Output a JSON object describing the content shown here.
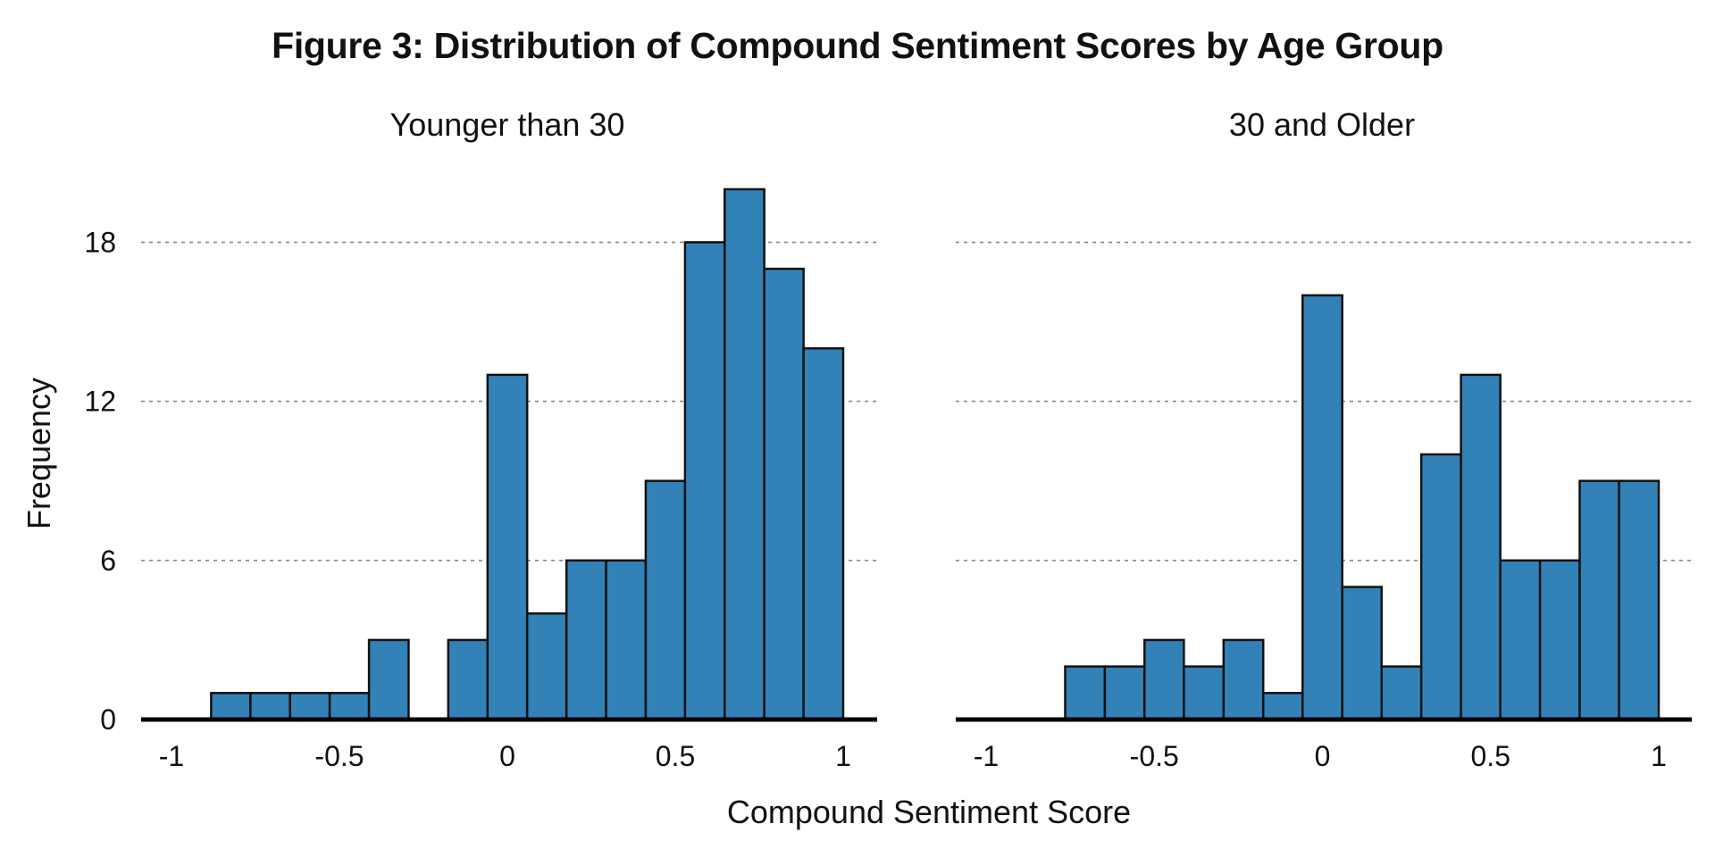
{
  "figure": {
    "title": "Figure 3: Distribution of Compound Sentiment Scores by Age Group"
  },
  "chart_data": {
    "type": "bar",
    "subtype": "histogram",
    "xlabel": "Compound Sentiment Score",
    "ylabel": "Frequency",
    "xlim": [
      -1,
      1
    ],
    "ylim": [
      0,
      21
    ],
    "xticks": [
      -1,
      -0.5,
      0,
      0.5,
      1
    ],
    "xtick_labels": [
      "-1",
      "-0.5",
      "0",
      "0.5",
      "1"
    ],
    "yticks": [
      0,
      6,
      12,
      18
    ],
    "ytick_labels": [
      "0",
      "6",
      "12",
      "18"
    ],
    "grid": "y-dashed",
    "bar_color": "#3282b8",
    "bar_edge_color": "#111111",
    "bin_edges": [
      -1.0,
      -0.882,
      -0.765,
      -0.647,
      -0.529,
      -0.412,
      -0.294,
      -0.176,
      -0.059,
      0.059,
      0.176,
      0.294,
      0.412,
      0.529,
      0.647,
      0.765,
      0.882,
      1.0
    ],
    "panels": [
      {
        "title": "Younger than 30",
        "counts": [
          0,
          1,
          1,
          1,
          1,
          3,
          0,
          3,
          13,
          4,
          6,
          6,
          9,
          18,
          20,
          17,
          14
        ]
      },
      {
        "title": "30 and Older",
        "counts": [
          0,
          0,
          2,
          2,
          3,
          2,
          3,
          1,
          16,
          5,
          2,
          10,
          13,
          6,
          6,
          9,
          9
        ]
      }
    ]
  }
}
